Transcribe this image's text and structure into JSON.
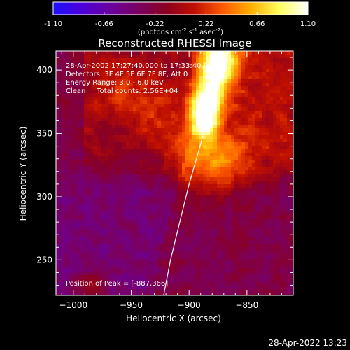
{
  "chart_data": {
    "type": "heatmap",
    "title": "Reconstructed RHESSI Image",
    "xlabel": "Heliocentric X (arcsec)",
    "ylabel": "Heliocentric Y (arcsec)",
    "xlim": [
      -1015,
      -810
    ],
    "ylim": [
      222,
      415
    ],
    "xticks": [
      -1000,
      -950,
      -900,
      -850
    ],
    "yticks": [
      250,
      300,
      350,
      400
    ],
    "colorbar": {
      "min": -1.1,
      "max": 1.1,
      "ticks": [
        "-1.10",
        "-0.66",
        "-0.22",
        "0.22",
        "0.66",
        "1.10"
      ],
      "unit": "(photons cm",
      "unit_sup1": "-2",
      "unit_mid": " s",
      "unit_sup2": "-1",
      "unit_mid2": " asec",
      "unit_sup3": "-2",
      "unit_end": ")",
      "colors": [
        "#1e10ff",
        "#4a00d8",
        "#6a00a0",
        "#7a0060",
        "#8a0020",
        "#c01000",
        "#ff5a00",
        "#ffb000",
        "#ffff60",
        "#ffffff"
      ]
    },
    "annotations": [
      "28-Apr-2002 17:27:40.000 to 17:33:40.000",
      "Detectors: 3F 4F 5F 6F 7F 8F, Att 0",
      "Energy Range: 3.0 - 6.0 keV",
      "Clean     Total counts: 2.56E+04"
    ],
    "peak_label": "Position of Peak = [-887,366]",
    "peak": [
      -887,
      366
    ],
    "limb_curve": [
      [
        -922,
        222
      ],
      [
        -916,
        250
      ],
      [
        -908,
        280
      ],
      [
        -900,
        310
      ],
      [
        -892,
        335
      ],
      [
        -886,
        355
      ],
      [
        -878,
        378
      ],
      [
        -871,
        398
      ],
      [
        -866,
        415
      ]
    ],
    "sources": [
      {
        "x": -887,
        "y": 366,
        "amp": 1.35,
        "sx": 9,
        "sy": 14
      },
      {
        "x": -878,
        "y": 395,
        "amp": 0.95,
        "sx": 11,
        "sy": 16
      },
      {
        "x": -872,
        "y": 412,
        "amp": 0.7,
        "sx": 12,
        "sy": 10
      },
      {
        "x": -905,
        "y": 330,
        "amp": 0.35,
        "sx": 12,
        "sy": 18
      },
      {
        "x": -880,
        "y": 322,
        "amp": 0.4,
        "sx": 12,
        "sy": 14
      },
      {
        "x": -860,
        "y": 330,
        "amp": 0.3,
        "sx": 14,
        "sy": 16
      },
      {
        "x": -960,
        "y": 385,
        "amp": 0.25,
        "sx": 18,
        "sy": 14
      },
      {
        "x": -930,
        "y": 365,
        "amp": 0.25,
        "sx": 16,
        "sy": 16
      },
      {
        "x": -985,
        "y": 230,
        "amp": 0.35,
        "sx": 10,
        "sy": 8
      }
    ],
    "background": -0.42,
    "noise": 0.12
  },
  "timestamp": "28-Apr-2022 13:23"
}
